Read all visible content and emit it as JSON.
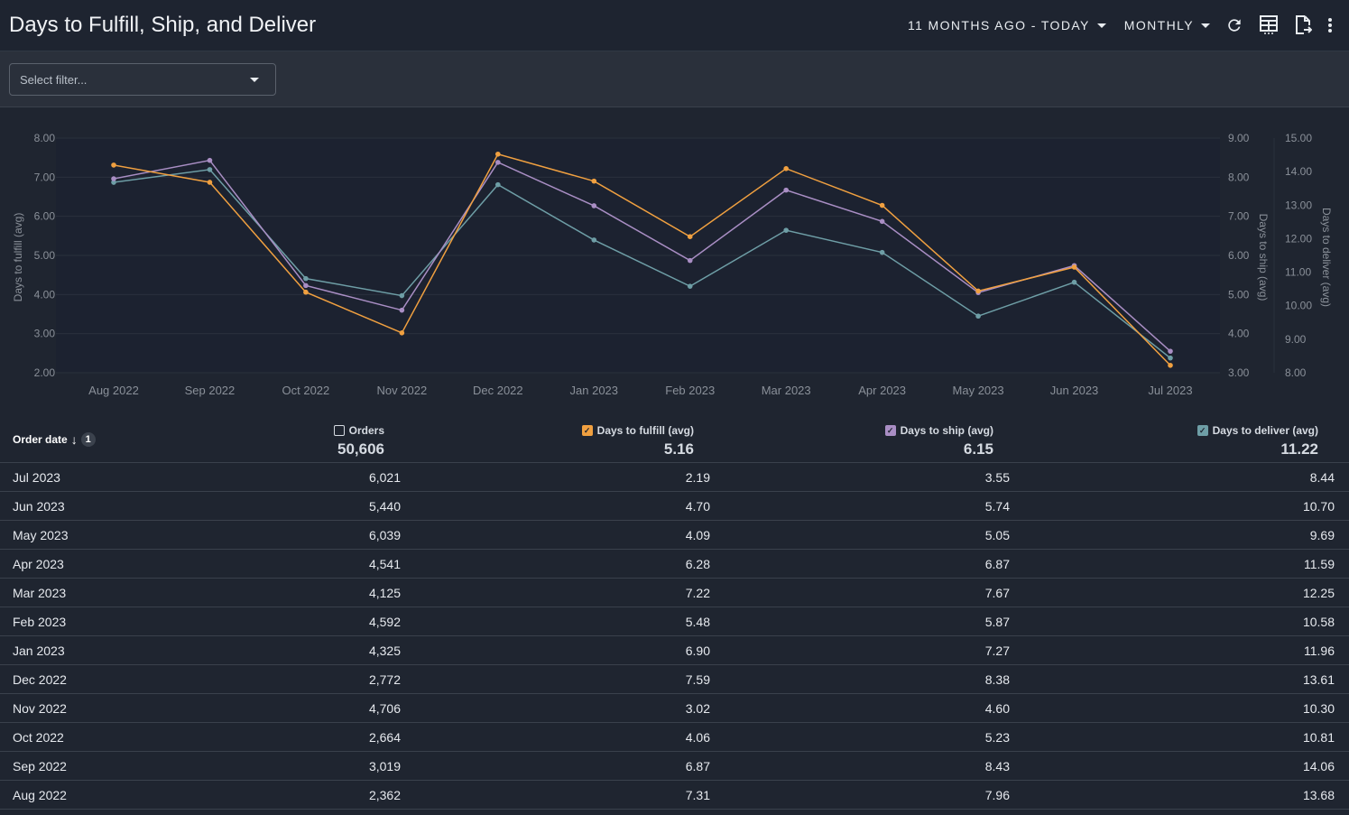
{
  "header": {
    "title": "Days to Fulfill, Ship, and Deliver",
    "date_range": "11 MONTHS AGO - TODAY",
    "granularity": "MONTHLY",
    "icons": [
      "refresh-icon",
      "table-view-icon",
      "export-icon",
      "more-vert-icon"
    ]
  },
  "filter": {
    "placeholder": "Select filter..."
  },
  "colors": {
    "fulfill": "#f0a040",
    "ship": "#a98ec4",
    "deliver": "#6e9ea6"
  },
  "chart_data": {
    "type": "line",
    "x": [
      "Aug 2022",
      "Sep 2022",
      "Oct 2022",
      "Nov 2022",
      "Dec 2022",
      "Jan 2023",
      "Feb 2023",
      "Mar 2023",
      "Apr 2023",
      "May 2023",
      "Jun 2023",
      "Jul 2023"
    ],
    "y_left": {
      "label": "Days to fulfill (avg)",
      "ticks": [
        "8.00",
        "7.00",
        "6.00",
        "5.00",
        "4.00",
        "3.00",
        "2.00"
      ],
      "range": [
        2,
        8
      ]
    },
    "y_right1": {
      "label": "Days to ship (avg)",
      "ticks": [
        "9.00",
        "8.00",
        "7.00",
        "6.00",
        "5.00",
        "4.00",
        "3.00"
      ],
      "range": [
        3,
        9
      ]
    },
    "y_right2": {
      "label": "Days to deliver (avg)",
      "ticks": [
        "15.00",
        "14.00",
        "13.00",
        "12.00",
        "11.00",
        "10.00",
        "9.00",
        "8.00"
      ],
      "range": [
        8,
        15
      ]
    },
    "series": [
      {
        "name": "Days to fulfill (avg)",
        "axis": "y_left",
        "color": "#f0a040",
        "values": [
          7.31,
          6.87,
          4.06,
          3.02,
          7.59,
          6.9,
          5.48,
          7.22,
          6.28,
          4.09,
          4.7,
          2.19
        ]
      },
      {
        "name": "Days to ship (avg)",
        "axis": "y_right1",
        "color": "#a98ec4",
        "values": [
          7.96,
          8.43,
          5.23,
          4.6,
          8.38,
          7.27,
          5.87,
          7.67,
          6.87,
          5.05,
          5.74,
          3.55
        ]
      },
      {
        "name": "Days to deliver (avg)",
        "axis": "y_right2",
        "color": "#6e9ea6",
        "values": [
          13.68,
          14.06,
          10.81,
          10.3,
          13.61,
          11.96,
          10.58,
          12.25,
          11.59,
          9.69,
          10.7,
          8.44
        ]
      }
    ]
  },
  "table": {
    "sort_col": {
      "label": "Order date",
      "sort_badge": "1"
    },
    "columns": [
      {
        "label": "Orders",
        "total": "50,606",
        "checked": false
      },
      {
        "label": "Days to fulfill (avg)",
        "total": "5.16",
        "checked": true
      },
      {
        "label": "Days to ship (avg)",
        "total": "6.15",
        "checked": true
      },
      {
        "label": "Days to deliver (avg)",
        "total": "11.22",
        "checked": true
      }
    ],
    "rows": [
      [
        "Jul 2023",
        "6,021",
        "2.19",
        "3.55",
        "8.44"
      ],
      [
        "Jun 2023",
        "5,440",
        "4.70",
        "5.74",
        "10.70"
      ],
      [
        "May 2023",
        "6,039",
        "4.09",
        "5.05",
        "9.69"
      ],
      [
        "Apr 2023",
        "4,541",
        "6.28",
        "6.87",
        "11.59"
      ],
      [
        "Mar 2023",
        "4,125",
        "7.22",
        "7.67",
        "12.25"
      ],
      [
        "Feb 2023",
        "4,592",
        "5.48",
        "5.87",
        "10.58"
      ],
      [
        "Jan 2023",
        "4,325",
        "6.90",
        "7.27",
        "11.96"
      ],
      [
        "Dec 2022",
        "2,772",
        "7.59",
        "8.38",
        "13.61"
      ],
      [
        "Nov 2022",
        "4,706",
        "3.02",
        "4.60",
        "10.30"
      ],
      [
        "Oct 2022",
        "2,664",
        "4.06",
        "5.23",
        "10.81"
      ],
      [
        "Sep 2022",
        "3,019",
        "6.87",
        "8.43",
        "14.06"
      ],
      [
        "Aug 2022",
        "2,362",
        "7.31",
        "7.96",
        "13.68"
      ]
    ]
  }
}
